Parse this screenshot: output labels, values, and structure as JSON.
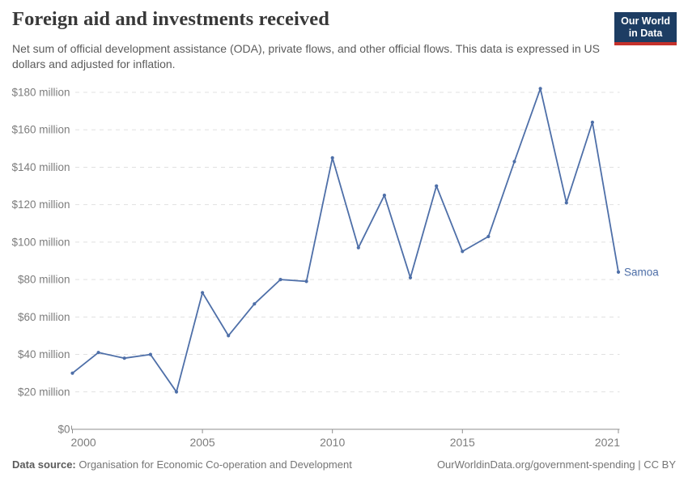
{
  "header": {
    "title": "Foreign aid and investments received",
    "subtitle": "Net sum of official development assistance (ODA), private flows, and other official flows. This data is expressed in US dollars and adjusted for inflation.",
    "logo": {
      "line1": "Our World",
      "line2": "in Data"
    }
  },
  "chart_data": {
    "type": "line",
    "title": "Foreign aid and investments received",
    "unit": "US dollars (millions), inflation adjusted",
    "entity_label": "Samoa",
    "series": [
      {
        "name": "Samoa",
        "x": [
          2000,
          2001,
          2002,
          2003,
          2004,
          2005,
          2006,
          2007,
          2008,
          2009,
          2010,
          2011,
          2012,
          2013,
          2014,
          2015,
          2016,
          2017,
          2018,
          2019,
          2020,
          2021
        ],
        "values": [
          30,
          41,
          38,
          40,
          20,
          73,
          50,
          67,
          80,
          79,
          145,
          97,
          125,
          81,
          130,
          95,
          103,
          143,
          182,
          121,
          164,
          84
        ]
      }
    ],
    "xlim": [
      2000,
      2021
    ],
    "ylim": [
      0,
      180
    ],
    "grid": true,
    "legend_position": "end-of-line",
    "line_color": "#4e6fa8",
    "x_ticks": [
      {
        "value": 2000,
        "label": "2000"
      },
      {
        "value": 2005,
        "label": "2005"
      },
      {
        "value": 2010,
        "label": "2010"
      },
      {
        "value": 2015,
        "label": "2015"
      },
      {
        "value": 2021,
        "label": "2021"
      }
    ],
    "y_ticks": [
      {
        "value": 0,
        "label": "$0"
      },
      {
        "value": 20,
        "label": "$20 million"
      },
      {
        "value": 40,
        "label": "$40 million"
      },
      {
        "value": 60,
        "label": "$60 million"
      },
      {
        "value": 80,
        "label": "$80 million"
      },
      {
        "value": 100,
        "label": "$100 million"
      },
      {
        "value": 120,
        "label": "$120 million"
      },
      {
        "value": 140,
        "label": "$140 million"
      },
      {
        "value": 160,
        "label": "$160 million"
      },
      {
        "value": 180,
        "label": "$180 million"
      }
    ]
  },
  "footer": {
    "source_label": "Data source:",
    "source_text": "Organisation for Economic Co-operation and Development",
    "credit_text": "OurWorldinData.org/government-spending | CC BY"
  },
  "colors": {
    "line": "#4e6fa8",
    "grid": "#e0e0e0",
    "axis": "#8f8f8f",
    "tick_text": "#7d7d7d",
    "logo_bg": "#1d3d63",
    "logo_accent": "#c5312b"
  }
}
